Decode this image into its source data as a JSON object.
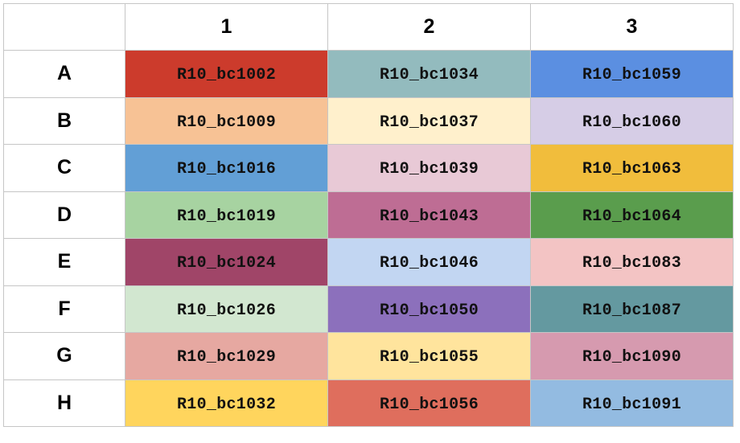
{
  "plate": {
    "corner": "",
    "columns": [
      "1",
      "2",
      "3"
    ],
    "rows": [
      {
        "label": "A",
        "wells": [
          {
            "id": "R10_bc1002",
            "color": "#cc3b2c"
          },
          {
            "id": "R10_bc1034",
            "color": "#93bbbe"
          },
          {
            "id": "R10_bc1059",
            "color": "#5b8fe1"
          }
        ]
      },
      {
        "label": "B",
        "wells": [
          {
            "id": "R10_bc1009",
            "color": "#f7c295"
          },
          {
            "id": "R10_bc1037",
            "color": "#fff0cc"
          },
          {
            "id": "R10_bc1060",
            "color": "#d6cde6"
          }
        ]
      },
      {
        "label": "C",
        "wells": [
          {
            "id": "R10_bc1016",
            "color": "#629fd6"
          },
          {
            "id": "R10_bc1039",
            "color": "#e8c9d6"
          },
          {
            "id": "R10_bc1063",
            "color": "#f1bd3c"
          }
        ]
      },
      {
        "label": "D",
        "wells": [
          {
            "id": "R10_bc1019",
            "color": "#a7d3a1"
          },
          {
            "id": "R10_bc1043",
            "color": "#be6d94"
          },
          {
            "id": "R10_bc1064",
            "color": "#5a9d4d"
          }
        ]
      },
      {
        "label": "E",
        "wells": [
          {
            "id": "R10_bc1024",
            "color": "#a04568"
          },
          {
            "id": "R10_bc1046",
            "color": "#c2d6f2"
          },
          {
            "id": "R10_bc1083",
            "color": "#f3c4c4"
          }
        ]
      },
      {
        "label": "F",
        "wells": [
          {
            "id": "R10_bc1026",
            "color": "#d2e7d0"
          },
          {
            "id": "R10_bc1050",
            "color": "#8c70bc"
          },
          {
            "id": "R10_bc1087",
            "color": "#6499a0"
          }
        ]
      },
      {
        "label": "G",
        "wells": [
          {
            "id": "R10_bc1029",
            "color": "#e6a8a1"
          },
          {
            "id": "R10_bc1055",
            "color": "#ffe49d"
          },
          {
            "id": "R10_bc1090",
            "color": "#d69aaf"
          }
        ]
      },
      {
        "label": "H",
        "wells": [
          {
            "id": "R10_bc1032",
            "color": "#ffd55d"
          },
          {
            "id": "R10_bc1056",
            "color": "#df6e5d"
          },
          {
            "id": "R10_bc1091",
            "color": "#93bbe1"
          }
        ]
      }
    ]
  }
}
